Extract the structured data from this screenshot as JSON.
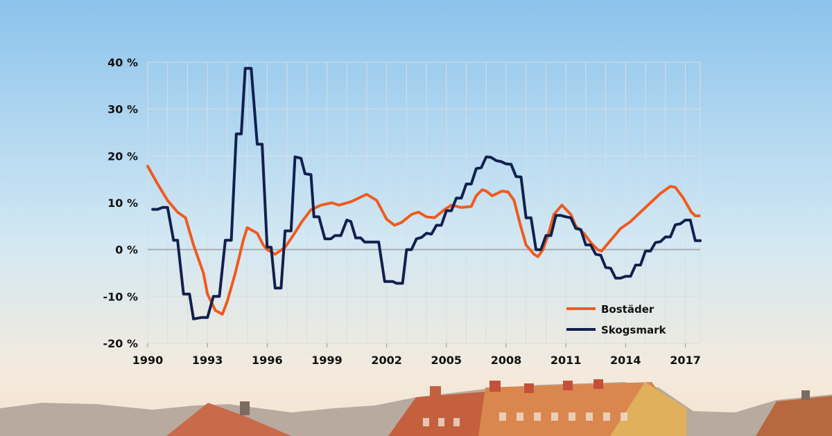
{
  "chart_data": {
    "type": "line",
    "title": "",
    "xlabel": "",
    "ylabel": "",
    "x_ticks": [
      "1990",
      "1993",
      "1996",
      "1999",
      "2002",
      "2005",
      "2008",
      "2011",
      "2014",
      "2017"
    ],
    "y_ticks": [
      "40 %",
      "30 %",
      "20 %",
      "10 %",
      "0 %",
      "-10 %",
      "-20 %"
    ],
    "xlim": [
      1990,
      2017.75
    ],
    "ylim": [
      -20,
      40
    ],
    "grid": true,
    "legend_position": "bottom-right",
    "series": [
      {
        "name": "Bostäder",
        "color": "#f05a1e",
        "points": [
          [
            1990.0,
            17.8
          ],
          [
            1990.5,
            14.0
          ],
          [
            1991.0,
            10.5
          ],
          [
            1991.5,
            8.0
          ],
          [
            1991.9,
            6.8
          ],
          [
            1992.3,
            1.0
          ],
          [
            1992.8,
            -5.0
          ],
          [
            1993.0,
            -9.5
          ],
          [
            1993.4,
            -13.0
          ],
          [
            1993.75,
            -13.8
          ],
          [
            1994.0,
            -11.0
          ],
          [
            1994.4,
            -5.0
          ],
          [
            1994.8,
            2.0
          ],
          [
            1995.0,
            4.7
          ],
          [
            1995.5,
            3.5
          ],
          [
            1995.8,
            1.0
          ],
          [
            1996.0,
            0.0
          ],
          [
            1996.4,
            -1.0
          ],
          [
            1996.9,
            0.5
          ],
          [
            1997.3,
            3.0
          ],
          [
            1997.75,
            6.0
          ],
          [
            1998.2,
            8.5
          ],
          [
            1998.7,
            9.5
          ],
          [
            1999.25,
            10.0
          ],
          [
            1999.6,
            9.5
          ],
          [
            2000.2,
            10.2
          ],
          [
            2000.6,
            11.0
          ],
          [
            2001.0,
            11.8
          ],
          [
            2001.5,
            10.5
          ],
          [
            2002.0,
            6.5
          ],
          [
            2002.4,
            5.2
          ],
          [
            2002.75,
            5.8
          ],
          [
            2003.25,
            7.5
          ],
          [
            2003.6,
            8.0
          ],
          [
            2004.0,
            7.0
          ],
          [
            2004.4,
            6.8
          ],
          [
            2004.9,
            8.5
          ],
          [
            2005.25,
            9.5
          ],
          [
            2005.75,
            9.0
          ],
          [
            2006.25,
            9.2
          ],
          [
            2006.5,
            11.5
          ],
          [
            2006.8,
            12.8
          ],
          [
            2007.0,
            12.5
          ],
          [
            2007.3,
            11.5
          ],
          [
            2007.8,
            12.5
          ],
          [
            2008.1,
            12.3
          ],
          [
            2008.4,
            10.5
          ],
          [
            2008.7,
            5.5
          ],
          [
            2009.0,
            1.0
          ],
          [
            2009.4,
            -1.0
          ],
          [
            2009.6,
            -1.5
          ],
          [
            2009.85,
            0.0
          ],
          [
            2010.1,
            3.0
          ],
          [
            2010.4,
            7.5
          ],
          [
            2010.8,
            9.5
          ],
          [
            2011.25,
            7.5
          ],
          [
            2011.5,
            5.0
          ],
          [
            2011.9,
            3.5
          ],
          [
            2012.25,
            1.5
          ],
          [
            2012.6,
            0.0
          ],
          [
            2012.8,
            -0.3
          ],
          [
            2013.25,
            2.0
          ],
          [
            2013.75,
            4.5
          ],
          [
            2014.25,
            6.0
          ],
          [
            2014.75,
            8.0
          ],
          [
            2015.25,
            10.0
          ],
          [
            2015.75,
            12.0
          ],
          [
            2016.25,
            13.5
          ],
          [
            2016.5,
            13.3
          ],
          [
            2016.9,
            11.0
          ],
          [
            2017.3,
            8.0
          ],
          [
            2017.5,
            7.2
          ],
          [
            2017.7,
            7.2
          ]
        ]
      },
      {
        "name": "Skogsmark",
        "color": "#12204e",
        "points": [
          [
            1990.25,
            8.6
          ],
          [
            1990.5,
            8.6
          ],
          [
            1990.75,
            9.0
          ],
          [
            1991.0,
            9.0
          ],
          [
            1991.3,
            2.0
          ],
          [
            1991.5,
            2.0
          ],
          [
            1991.8,
            -9.5
          ],
          [
            1992.1,
            -9.5
          ],
          [
            1992.3,
            -14.8
          ],
          [
            1992.7,
            -14.5
          ],
          [
            1993.0,
            -14.5
          ],
          [
            1993.3,
            -10.0
          ],
          [
            1993.6,
            -10.0
          ],
          [
            1993.9,
            2.0
          ],
          [
            1994.2,
            2.0
          ],
          [
            1994.45,
            24.7
          ],
          [
            1994.7,
            24.7
          ],
          [
            1994.9,
            38.7
          ],
          [
            1995.2,
            38.7
          ],
          [
            1995.5,
            22.5
          ],
          [
            1995.75,
            22.5
          ],
          [
            1996.0,
            0.5
          ],
          [
            1996.2,
            0.5
          ],
          [
            1996.4,
            -8.2
          ],
          [
            1996.7,
            -8.2
          ],
          [
            1996.9,
            4.0
          ],
          [
            1997.2,
            4.0
          ],
          [
            1997.4,
            19.8
          ],
          [
            1997.7,
            19.5
          ],
          [
            1997.9,
            16.2
          ],
          [
            1998.2,
            16.0
          ],
          [
            1998.35,
            7.0
          ],
          [
            1998.6,
            7.0
          ],
          [
            1998.9,
            2.3
          ],
          [
            1999.2,
            2.3
          ],
          [
            1999.4,
            3.0
          ],
          [
            1999.7,
            3.0
          ],
          [
            2000.0,
            6.3
          ],
          [
            2000.2,
            6.0
          ],
          [
            2000.45,
            2.5
          ],
          [
            2000.7,
            2.5
          ],
          [
            2000.9,
            1.6
          ],
          [
            2001.6,
            1.6
          ],
          [
            2001.9,
            -6.8
          ],
          [
            2002.3,
            -6.8
          ],
          [
            2002.5,
            -7.2
          ],
          [
            2002.8,
            -7.2
          ],
          [
            2003.0,
            0.0
          ],
          [
            2003.25,
            0.0
          ],
          [
            2003.5,
            2.3
          ],
          [
            2003.75,
            2.6
          ],
          [
            2004.0,
            3.5
          ],
          [
            2004.25,
            3.3
          ],
          [
            2004.5,
            5.2
          ],
          [
            2004.75,
            5.2
          ],
          [
            2005.0,
            8.3
          ],
          [
            2005.25,
            8.3
          ],
          [
            2005.5,
            11.0
          ],
          [
            2005.75,
            11.0
          ],
          [
            2006.0,
            14.0
          ],
          [
            2006.25,
            14.0
          ],
          [
            2006.5,
            17.3
          ],
          [
            2006.75,
            17.5
          ],
          [
            2007.0,
            19.8
          ],
          [
            2007.25,
            19.7
          ],
          [
            2007.5,
            19.0
          ],
          [
            2007.75,
            18.8
          ],
          [
            2008.0,
            18.3
          ],
          [
            2008.25,
            18.2
          ],
          [
            2008.5,
            15.6
          ],
          [
            2008.75,
            15.5
          ],
          [
            2009.0,
            6.8
          ],
          [
            2009.25,
            6.8
          ],
          [
            2009.5,
            0.0
          ],
          [
            2009.75,
            0.0
          ],
          [
            2010.0,
            3.0
          ],
          [
            2010.25,
            3.0
          ],
          [
            2010.5,
            7.3
          ],
          [
            2010.75,
            7.3
          ],
          [
            2011.0,
            7.0
          ],
          [
            2011.25,
            6.8
          ],
          [
            2011.5,
            4.5
          ],
          [
            2011.75,
            4.3
          ],
          [
            2012.0,
            1.0
          ],
          [
            2012.25,
            1.0
          ],
          [
            2012.5,
            -1.0
          ],
          [
            2012.75,
            -1.2
          ],
          [
            2013.0,
            -3.8
          ],
          [
            2013.25,
            -4.0
          ],
          [
            2013.5,
            -6.1
          ],
          [
            2013.75,
            -6.1
          ],
          [
            2014.0,
            -5.7
          ],
          [
            2014.25,
            -5.7
          ],
          [
            2014.5,
            -3.3
          ],
          [
            2014.75,
            -3.3
          ],
          [
            2015.0,
            -0.3
          ],
          [
            2015.25,
            -0.3
          ],
          [
            2015.5,
            1.5
          ],
          [
            2015.75,
            1.7
          ],
          [
            2016.0,
            2.7
          ],
          [
            2016.25,
            2.7
          ],
          [
            2016.5,
            5.3
          ],
          [
            2016.75,
            5.5
          ],
          [
            2017.0,
            6.3
          ],
          [
            2017.25,
            6.3
          ],
          [
            2017.5,
            1.9
          ],
          [
            2017.75,
            1.9
          ]
        ]
      }
    ]
  }
}
